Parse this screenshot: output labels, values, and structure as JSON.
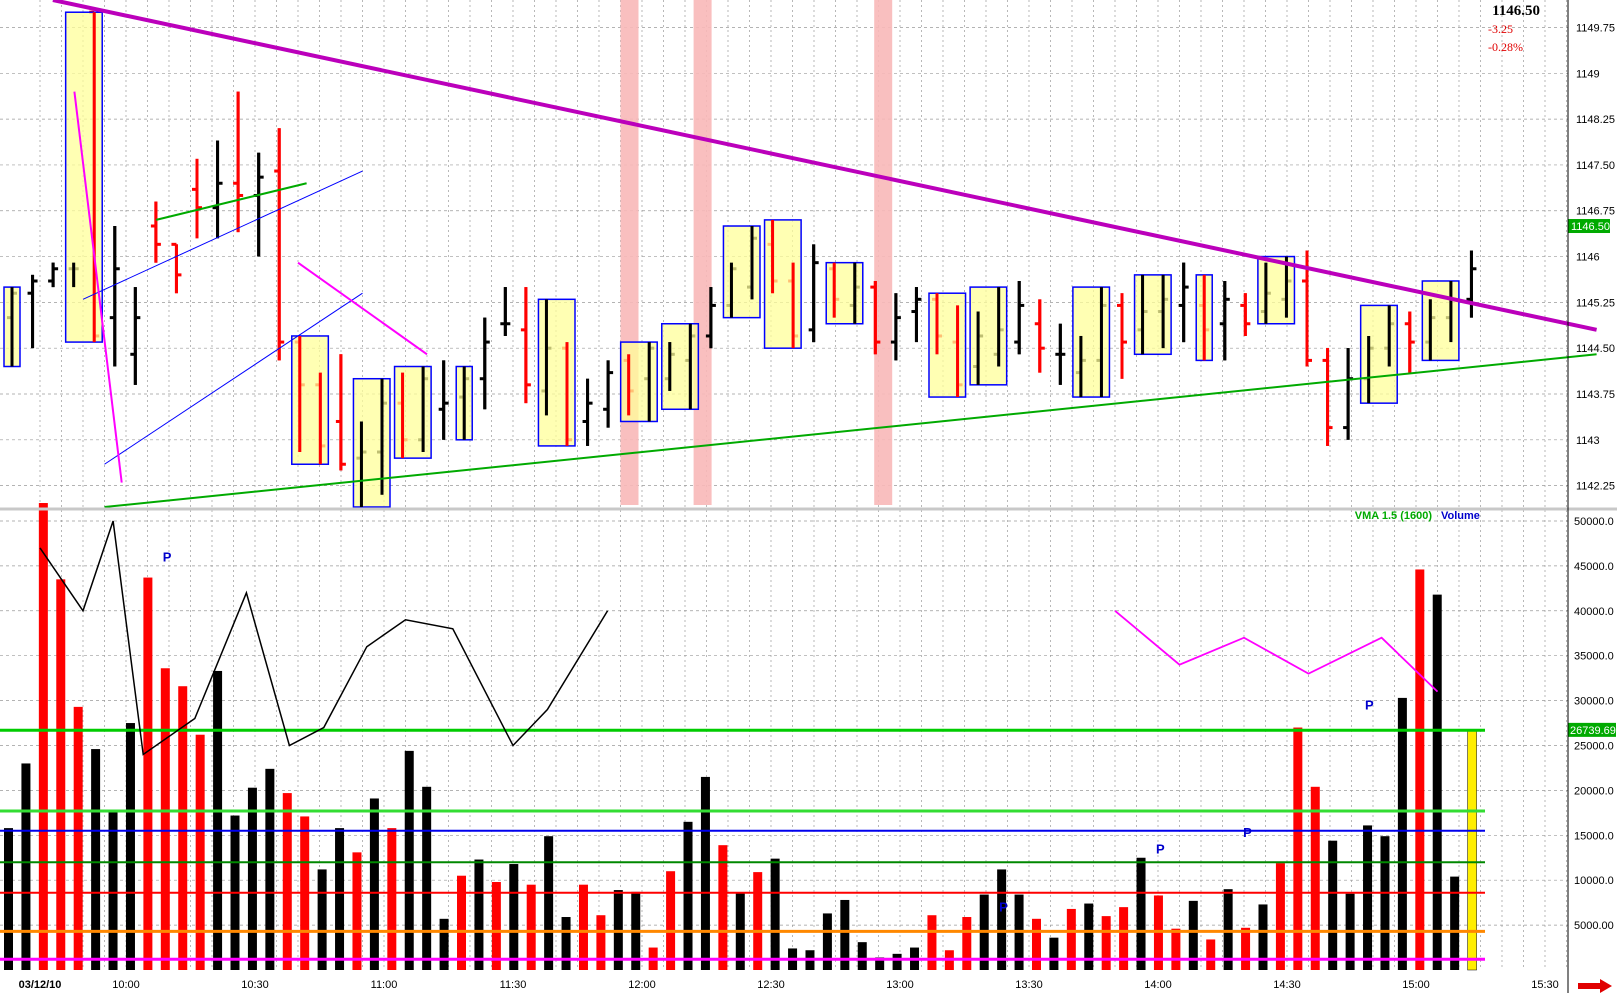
{
  "quote": {
    "last": "1146.50",
    "change": "-3.25",
    "change_pct": "-0.28%"
  },
  "colors": {
    "up": "#000000",
    "down": "#ff0000",
    "box_fill": "#ffff99",
    "box_border": "#0000ff",
    "trend": "#bb00bb",
    "green": "#00aa00",
    "blue": "#0000ff",
    "highlight": "#f8b8b8",
    "cyan": "#bff0f0"
  },
  "chart_data": [
    {
      "type": "ohlc",
      "y_ticks": [
        "1142.25",
        "1143",
        "1143.75",
        "1144.50",
        "1145.25",
        "1146",
        "1146.75",
        "1147.50",
        "1148.25",
        "1149",
        "1149.75"
      ],
      "ylim": [
        1141.9,
        1150.2
      ],
      "last_price_label": "1146.50",
      "time_labels": [
        "03/12/10",
        "10:00",
        "10:30",
        "11:00",
        "11:30",
        "12:00",
        "12:30",
        "13:00",
        "13:30",
        "14:00",
        "14:30",
        "15:00",
        "15:30"
      ],
      "time_label_slots": [
        0,
        20,
        50,
        80,
        110,
        140,
        170,
        200,
        230,
        260,
        290,
        320,
        350
      ],
      "bars": [
        [
          1145.5,
          1144.2,
          1145.0,
          1145.4
        ],
        [
          1145.7,
          1144.5,
          1145.4,
          1145.6
        ],
        [
          1145.9,
          1145.5,
          1145.6,
          1145.8
        ],
        [
          1145.9,
          1145.5,
          1145.8,
          1145.8
        ],
        [
          1150.0,
          1144.6,
          1150.0,
          1144.7
        ],
        [
          1146.5,
          1144.2,
          1145.0,
          1145.8
        ],
        [
          1145.5,
          1143.9,
          1144.4,
          1145.0
        ],
        [
          1146.9,
          1145.9,
          1146.5,
          1146.2
        ],
        [
          1146.2,
          1145.4,
          1146.2,
          1145.7
        ],
        [
          1147.6,
          1146.3,
          1147.1,
          1146.8
        ],
        [
          1147.9,
          1146.3,
          1146.8,
          1147.2
        ],
        [
          1148.7,
          1146.4,
          1147.2,
          1147.0
        ],
        [
          1147.7,
          1146.0,
          1147.0,
          1147.3
        ],
        [
          1148.1,
          1144.3,
          1147.4,
          1144.6
        ],
        [
          1144.7,
          1142.8,
          1144.6,
          1143.9
        ],
        [
          1144.1,
          1142.6,
          1143.9,
          1142.9
        ],
        [
          1144.4,
          1142.5,
          1143.3,
          1142.6
        ],
        [
          1143.3,
          1141.9,
          1142.7,
          1142.8
        ],
        [
          1144.0,
          1142.1,
          1142.8,
          1143.6
        ],
        [
          1144.1,
          1142.7,
          1143.6,
          1143.0
        ],
        [
          1144.2,
          1142.8,
          1143.0,
          1144.0
        ],
        [
          1144.3,
          1143.0,
          1143.5,
          1143.6
        ],
        [
          1144.2,
          1143.0,
          1143.7,
          1144.0
        ],
        [
          1145.0,
          1143.5,
          1144.0,
          1144.6
        ],
        [
          1145.5,
          1144.7,
          1144.9,
          1144.9
        ],
        [
          1145.5,
          1143.6,
          1144.8,
          1143.9
        ],
        [
          1145.3,
          1143.4,
          1143.8,
          1144.5
        ],
        [
          1144.6,
          1142.9,
          1144.5,
          1143.0
        ],
        [
          1144.0,
          1142.9,
          1143.3,
          1143.6
        ],
        [
          1144.3,
          1143.2,
          1143.5,
          1144.1
        ],
        [
          1144.4,
          1143.4,
          1144.3,
          1143.8
        ],
        [
          1144.6,
          1143.3,
          1144.0,
          1144.5
        ],
        [
          1144.6,
          1143.8,
          1144.0,
          1144.4
        ],
        [
          1144.9,
          1143.5,
          1144.3,
          1144.7
        ],
        [
          1145.5,
          1144.5,
          1144.7,
          1145.2
        ],
        [
          1145.9,
          1145.0,
          1145.2,
          1145.8
        ],
        [
          1146.5,
          1145.3,
          1145.5,
          1146.3
        ],
        [
          1146.6,
          1145.4,
          1146.2,
          1145.6
        ],
        [
          1145.9,
          1144.5,
          1145.6,
          1144.7
        ],
        [
          1146.2,
          1144.6,
          1144.8,
          1145.9
        ],
        [
          1145.9,
          1145.0,
          1145.8,
          1145.3
        ],
        [
          1145.9,
          1144.9,
          1145.2,
          1145.5
        ],
        [
          1145.6,
          1144.4,
          1145.5,
          1144.6
        ],
        [
          1145.4,
          1144.3,
          1144.6,
          1145.0
        ],
        [
          1145.5,
          1144.6,
          1145.1,
          1145.3
        ],
        [
          1145.4,
          1144.4,
          1145.3,
          1144.7
        ],
        [
          1145.2,
          1143.7,
          1144.6,
          1143.9
        ],
        [
          1145.1,
          1143.9,
          1144.2,
          1144.7
        ],
        [
          1145.5,
          1144.2,
          1144.4,
          1144.8
        ],
        [
          1145.6,
          1144.4,
          1144.6,
          1145.2
        ],
        [
          1145.3,
          1144.1,
          1144.9,
          1144.5
        ],
        [
          1144.9,
          1143.9,
          1144.4,
          1144.4
        ],
        [
          1144.7,
          1143.7,
          1144.1,
          1144.3
        ],
        [
          1145.5,
          1143.7,
          1144.3,
          1145.2
        ],
        [
          1145.4,
          1144.0,
          1145.2,
          1144.6
        ],
        [
          1145.7,
          1144.4,
          1144.8,
          1145.1
        ],
        [
          1145.7,
          1144.5,
          1145.1,
          1145.3
        ],
        [
          1145.9,
          1144.6,
          1145.2,
          1145.5
        ],
        [
          1145.7,
          1144.3,
          1145.2,
          1144.8
        ],
        [
          1145.6,
          1144.3,
          1144.9,
          1145.3
        ],
        [
          1145.4,
          1144.7,
          1145.2,
          1144.9
        ],
        [
          1145.9,
          1144.9,
          1145.1,
          1145.4
        ],
        [
          1146.0,
          1145.0,
          1145.3,
          1145.6
        ],
        [
          1146.1,
          1144.2,
          1145.6,
          1144.3
        ],
        [
          1144.5,
          1142.9,
          1144.3,
          1143.2
        ],
        [
          1144.5,
          1143.0,
          1143.2,
          1144.0
        ],
        [
          1144.7,
          1143.6,
          1144.0,
          1144.5
        ],
        [
          1145.2,
          1144.2,
          1144.5,
          1144.9
        ],
        [
          1145.1,
          1144.1,
          1144.9,
          1144.6
        ],
        [
          1145.3,
          1144.3,
          1144.6,
          1145.0
        ],
        [
          1145.6,
          1144.6,
          1145.0,
          1145.3
        ],
        [
          1146.1,
          1145.0,
          1145.3,
          1145.8
        ]
      ],
      "overlay_lines": [
        {
          "name": "major-down-trend",
          "color": "#bb00bb",
          "width": 4,
          "points": [
            [
              3,
              1150.2
            ],
            [
              362,
              1144.8
            ]
          ]
        },
        {
          "name": "major-up-trend",
          "color": "#00aa00",
          "width": 2,
          "points": [
            [
              15,
              1141.9
            ],
            [
              362,
              1144.4
            ]
          ]
        },
        {
          "name": "upper-green-channel",
          "color": "#00aa00",
          "width": 2,
          "points": [
            [
              27,
              1146.6
            ],
            [
              62,
              1147.2
            ]
          ]
        },
        {
          "name": "blue-channel-top",
          "color": "#0000ff",
          "width": 1,
          "points": [
            [
              10,
              1145.3
            ],
            [
              75,
              1147.4
            ]
          ]
        },
        {
          "name": "blue-channel-bottom",
          "color": "#0000ff",
          "width": 1,
          "points": [
            [
              15,
              1142.6
            ],
            [
              75,
              1145.4
            ]
          ]
        },
        {
          "name": "magenta-down-2",
          "color": "#ff00ff",
          "width": 2,
          "points": [
            [
              8,
              1148.7
            ],
            [
              19,
              1142.3
            ]
          ]
        },
        {
          "name": "magenta-lower",
          "color": "#ff00ff",
          "width": 2,
          "points": [
            [
              60,
              1145.9
            ],
            [
              90,
              1144.4
            ]
          ]
        }
      ]
    },
    {
      "type": "bar",
      "title": "Volume",
      "legend": [
        {
          "name": "VMA 1.5 (1600)",
          "color": "#00aa00"
        },
        {
          "name": "Volume",
          "color": "#0000cc"
        }
      ],
      "y_ticks": [
        "5000.00",
        "10000.0",
        "15000.0",
        "20000.0",
        "25000.0",
        "30000.0",
        "35000.0",
        "40000.0",
        "45000.0",
        "50000.0"
      ],
      "ylim": [
        0,
        51000
      ],
      "current_label": "26739.69",
      "values": [
        15800,
        23000,
        52000,
        43500,
        29300,
        24600,
        17700,
        27500,
        43700,
        33600,
        31600,
        26200,
        33300,
        17200,
        20300,
        22400,
        19700,
        17100,
        11200,
        15800,
        13100,
        19100,
        15800,
        24400,
        20400,
        5700,
        10500,
        12300,
        9800,
        11800,
        9500,
        14900,
        5900,
        9500,
        6100,
        8900,
        8700,
        2500,
        11000,
        16500,
        21500,
        13900,
        8600,
        10900,
        12400,
        2400,
        2200,
        6300,
        7800,
        3100,
        1400,
        1800,
        2500,
        6100,
        2200,
        5900,
        8400,
        11200,
        8400,
        5700,
        3600,
        6800,
        7400,
        6000,
        7000,
        12500,
        8300,
        4600,
        7700,
        3400,
        9000,
        4700,
        7300,
        11900,
        27000,
        20400,
        14400,
        8500,
        16100,
        14900,
        30300,
        44600,
        41800,
        10400,
        26700
      ],
      "colors": [
        "k",
        "k",
        "r",
        "r",
        "r",
        "k",
        "k",
        "k",
        "r",
        "r",
        "r",
        "r",
        "k",
        "k",
        "k",
        "k",
        "r",
        "r",
        "k",
        "k",
        "r",
        "k",
        "r",
        "k",
        "k",
        "k",
        "r",
        "k",
        "r",
        "k",
        "r",
        "k",
        "k",
        "r",
        "r",
        "k",
        "k",
        "r",
        "r",
        "k",
        "k",
        "r",
        "k",
        "r",
        "k",
        "k",
        "k",
        "k",
        "k",
        "k",
        "k",
        "k",
        "k",
        "r",
        "r",
        "r",
        "k",
        "k",
        "k",
        "r",
        "k",
        "r",
        "k",
        "r",
        "r",
        "k",
        "r",
        "r",
        "k",
        "r",
        "k",
        "r",
        "k",
        "r",
        "r",
        "r",
        "k",
        "k",
        "k",
        "k",
        "k",
        "r",
        "k",
        "k",
        "y"
      ],
      "levels": [
        {
          "name": "vma-green",
          "color": "#00cc00",
          "value": 26700,
          "width": 3
        },
        {
          "name": "light-green",
          "color": "#33dd33",
          "value": 17700,
          "width": 3
        },
        {
          "name": "blue",
          "color": "#0000ee",
          "value": 15500,
          "width": 2
        },
        {
          "name": "dark-green",
          "color": "#008800",
          "value": 12000,
          "width": 2
        },
        {
          "name": "red",
          "color": "#ff0000",
          "value": 8600,
          "width": 2
        },
        {
          "name": "orange",
          "color": "#ff8800",
          "value": 4300,
          "width": 3
        },
        {
          "name": "magenta",
          "color": "#ff00ff",
          "value": 1200,
          "width": 3
        }
      ],
      "p_markers": [
        {
          "slot": 9,
          "value": 45500
        },
        {
          "slot": 57,
          "value": 6500
        },
        {
          "slot": 66,
          "value": 13000
        },
        {
          "slot": 71,
          "value": 14800
        },
        {
          "slot": 78,
          "value": 29000
        }
      ]
    }
  ]
}
